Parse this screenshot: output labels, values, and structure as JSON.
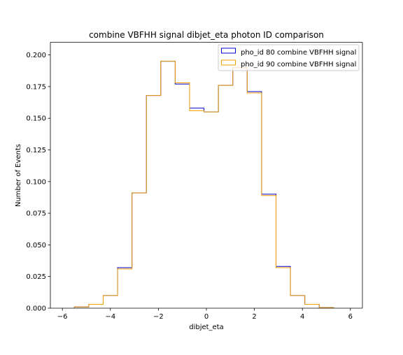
{
  "chart_data": {
    "type": "histogram-step",
    "title": "combine VBFHH signal dibjet_eta photon ID comparison",
    "xlabel": "dibjet_eta",
    "ylabel": "Number of Events",
    "xlim": [
      -6.5,
      6.5
    ],
    "ylim": [
      0,
      0.21
    ],
    "xticks": [
      -6,
      -4,
      -2,
      0,
      2,
      4,
      6
    ],
    "xtick_labels": [
      "−6",
      "−4",
      "−2",
      "0",
      "2",
      "4",
      "6"
    ],
    "yticks": [
      0.0,
      0.025,
      0.05,
      0.075,
      0.1,
      0.125,
      0.15,
      0.175,
      0.2
    ],
    "ytick_labels": [
      "0.000",
      "0.025",
      "0.050",
      "0.075",
      "0.100",
      "0.125",
      "0.150",
      "0.175",
      "0.200"
    ],
    "grid": false,
    "legend_position": "top-right",
    "bin_edges": [
      -5.5,
      -4.9,
      -4.3,
      -3.7,
      -3.1,
      -2.5,
      -1.9,
      -1.3,
      -0.7,
      -0.1,
      0.5,
      1.1,
      1.7,
      2.3,
      2.9,
      3.5,
      4.1,
      4.7,
      5.3
    ],
    "series": [
      {
        "name": "pho_id 80 combine VBFHH signal",
        "color": "#0000cc",
        "values": [
          0.001,
          0.003,
          0.01,
          0.032,
          0.091,
          0.168,
          0.195,
          0.177,
          0.158,
          0.155,
          0.176,
          0.19,
          0.171,
          0.09,
          0.033,
          0.01,
          0.003,
          0.0005
        ]
      },
      {
        "name": "pho_id 90 combine VBFHH signal",
        "color": "#f0a000",
        "values": [
          0.001,
          0.003,
          0.01,
          0.031,
          0.091,
          0.168,
          0.195,
          0.178,
          0.156,
          0.155,
          0.176,
          0.19,
          0.17,
          0.089,
          0.032,
          0.01,
          0.003,
          0.0005
        ]
      }
    ]
  }
}
